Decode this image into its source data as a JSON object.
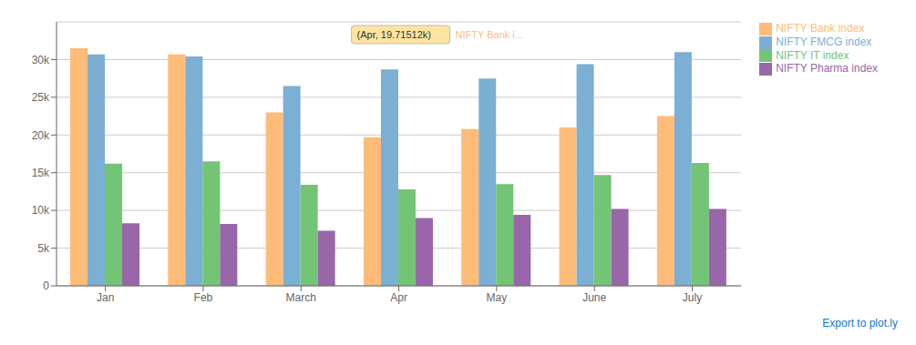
{
  "chart_data": {
    "type": "bar",
    "categories": [
      "Jan",
      "Feb",
      "March",
      "Apr",
      "May",
      "June",
      "July"
    ],
    "series": [
      {
        "name": "NIFTY Bank index",
        "color": "#FFBB78",
        "values": [
          31500,
          30700,
          23000,
          19715,
          20800,
          21000,
          22500
        ]
      },
      {
        "name": "NIFTY FMCG index",
        "color": "#7BAFD4",
        "values": [
          30700,
          30400,
          26500,
          28700,
          27500,
          29400,
          31000
        ]
      },
      {
        "name": "NIFTY IT index",
        "color": "#74C476",
        "values": [
          16200,
          16500,
          13400,
          12800,
          13500,
          14700,
          16300
        ]
      },
      {
        "name": "NIFTY Pharma index",
        "color": "#9966AA",
        "values": [
          8300,
          8200,
          7300,
          9000,
          9400,
          10200,
          10200
        ]
      }
    ],
    "ylim": [
      0,
      35000
    ],
    "yticks": [
      0,
      {
        "value": 5000,
        "label": "5k"
      },
      {
        "value": 10000,
        "label": "10k"
      },
      {
        "value": 15000,
        "label": "15k"
      },
      {
        "value": 20000,
        "label": "20k"
      },
      {
        "value": 25000,
        "label": "25k"
      },
      {
        "value": 30000,
        "label": "30k"
      }
    ],
    "grid": true,
    "legend": "right",
    "annotations": [
      "(Apr, 19.71512k)",
      "NIFTY Bank i...",
      "Export to plot.ly"
    ]
  }
}
